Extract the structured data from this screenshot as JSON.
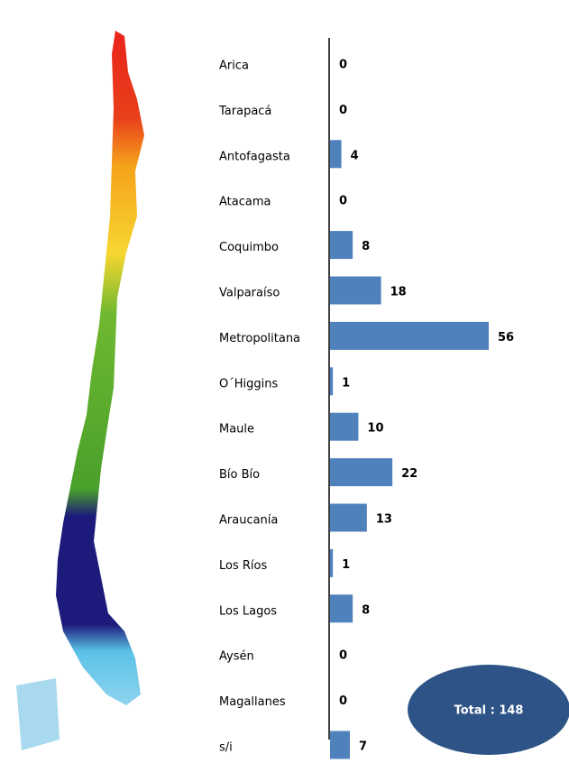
{
  "chart_data": {
    "type": "bar",
    "orientation": "horizontal",
    "categories": [
      "Arica",
      "Tarapacá",
      "Antofagasta",
      "Atacama",
      "Coquimbo",
      "Valparaíso",
      "Metropolitana",
      "O´Higgins",
      "Maule",
      "Bío Bío",
      "Araucanía",
      "Los Ríos",
      "Los Lagos",
      "Aysén",
      "Magallanes",
      "s/i"
    ],
    "values": [
      0,
      0,
      4,
      0,
      8,
      18,
      56,
      1,
      10,
      22,
      13,
      1,
      8,
      0,
      0,
      7
    ],
    "color": "#4f81bd",
    "annotation": "Total : 148"
  }
}
